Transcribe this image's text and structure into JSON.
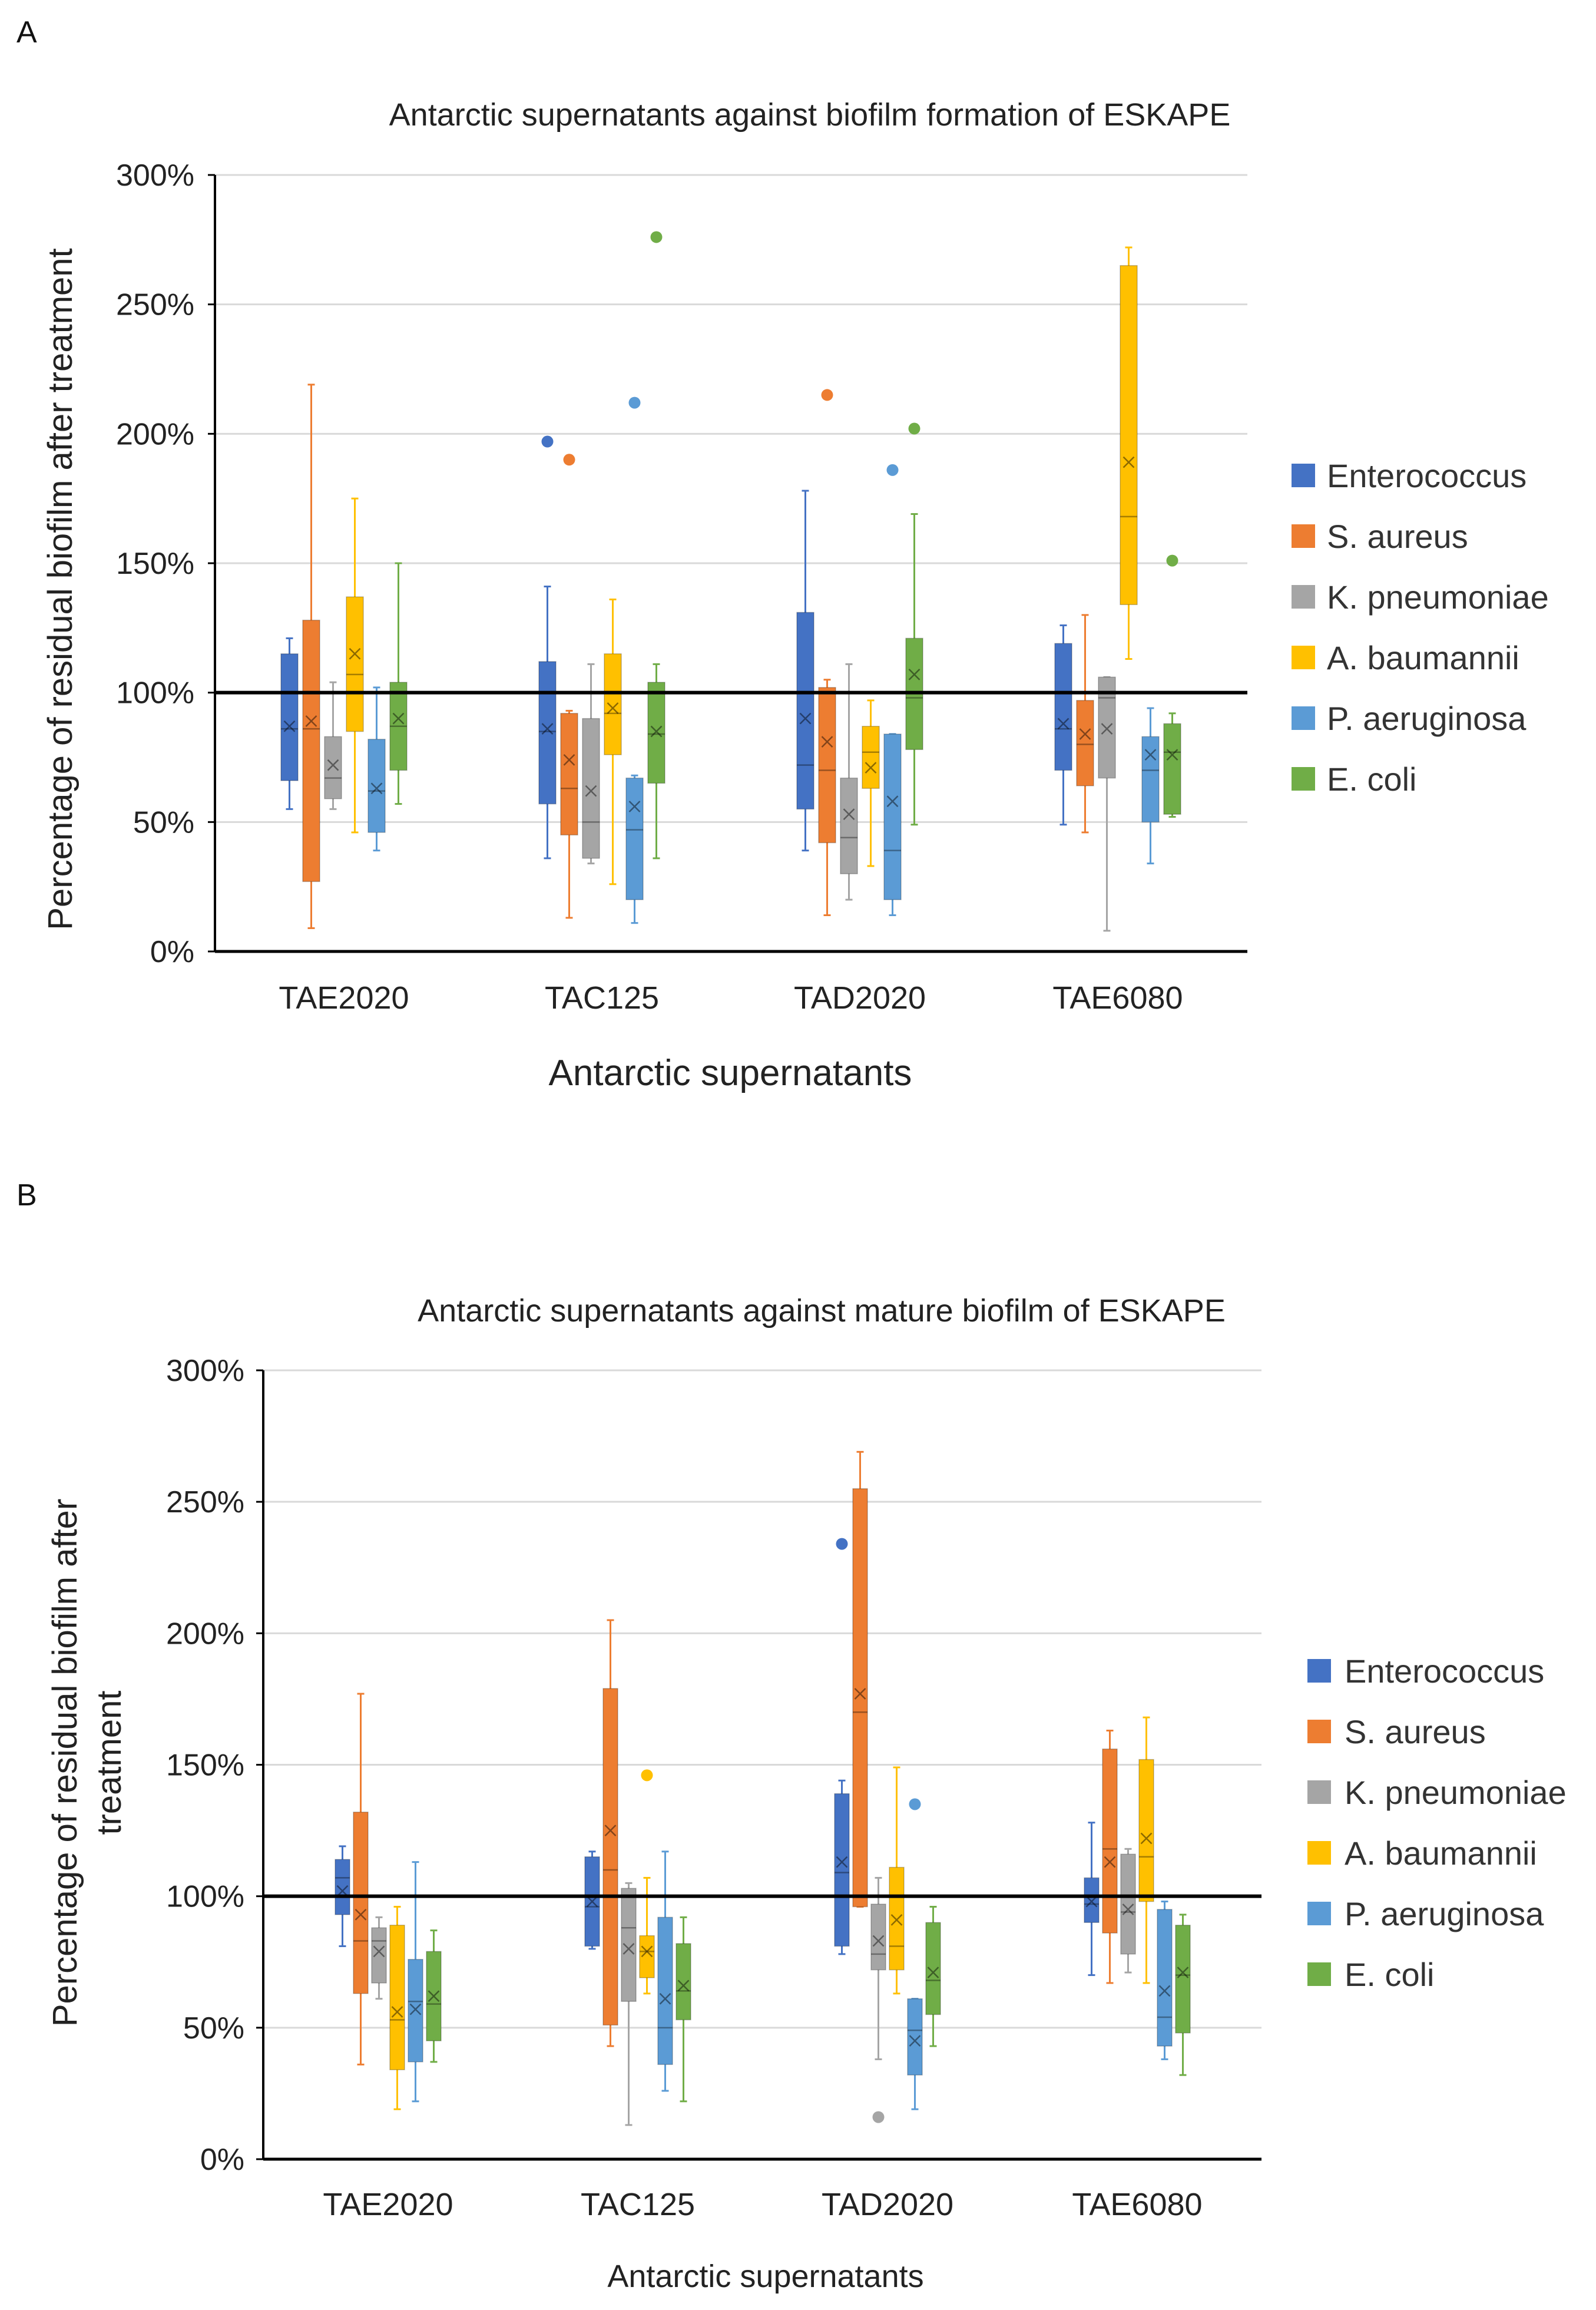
{
  "figure": {
    "panels": [
      "A",
      "B"
    ]
  },
  "colors": {
    "Enterococcus": "#4472C4",
    "S. aureus": "#ED7D31",
    "K. pneumoniae": "#A5A5A5",
    "A. baumannii": "#FFC000",
    "P. aeruginosa": "#5B9BD5",
    "E. coli": "#70AD47",
    "grid": "#d9d9d9",
    "axis": "#000000",
    "reference_line": "#000000"
  },
  "chart_data": [
    {
      "type": "box",
      "panel": "A",
      "title": "Antarctic supernatants against biofilm formation of ESKAPE",
      "xlabel": "Antarctic supernatants",
      "ylabel": "Percentage of residual biofilm after treatment",
      "ylim": [
        0,
        3.0
      ],
      "yticks": [
        "0%",
        "50%",
        "100%",
        "150%",
        "200%",
        "250%",
        "300%"
      ],
      "ytick_values": [
        0,
        0.5,
        1.0,
        1.5,
        2.0,
        2.5,
        3.0
      ],
      "reference_line": 1.0,
      "grid": true,
      "legend_position": "right",
      "categories": [
        "TAE2020",
        "TAC125",
        "TAD2020",
        "TAE6080"
      ],
      "series": [
        {
          "name": "Enterococcus",
          "boxes": [
            {
              "min": 0.55,
              "q1": 0.66,
              "median": 0.86,
              "q3": 1.15,
              "max": 1.21,
              "mean": 0.87,
              "outliers": []
            },
            {
              "min": 0.36,
              "q1": 0.57,
              "median": 0.85,
              "q3": 1.12,
              "max": 1.41,
              "mean": 0.86,
              "outliers": [
                1.97
              ]
            },
            {
              "min": 0.39,
              "q1": 0.55,
              "median": 0.72,
              "q3": 1.31,
              "max": 1.78,
              "mean": 0.9,
              "outliers": []
            },
            {
              "min": 0.49,
              "q1": 0.7,
              "median": 0.86,
              "q3": 1.19,
              "max": 1.26,
              "mean": 0.88,
              "outliers": []
            }
          ]
        },
        {
          "name": "S. aureus",
          "boxes": [
            {
              "min": 0.09,
              "q1": 0.27,
              "median": 0.86,
              "q3": 1.28,
              "max": 2.19,
              "mean": 0.89,
              "outliers": []
            },
            {
              "min": 0.13,
              "q1": 0.45,
              "median": 0.63,
              "q3": 0.92,
              "max": 0.93,
              "mean": 0.74,
              "outliers": [
                1.9
              ]
            },
            {
              "min": 0.14,
              "q1": 0.42,
              "median": 0.7,
              "q3": 1.02,
              "max": 1.05,
              "mean": 0.81,
              "outliers": [
                2.15
              ]
            },
            {
              "min": 0.46,
              "q1": 0.64,
              "median": 0.8,
              "q3": 0.97,
              "max": 1.3,
              "mean": 0.84,
              "outliers": []
            }
          ]
        },
        {
          "name": "K. pneumoniae",
          "boxes": [
            {
              "min": 0.55,
              "q1": 0.59,
              "median": 0.67,
              "q3": 0.83,
              "max": 1.04,
              "mean": 0.72,
              "outliers": []
            },
            {
              "min": 0.34,
              "q1": 0.36,
              "median": 0.5,
              "q3": 0.9,
              "max": 1.11,
              "mean": 0.62,
              "outliers": []
            },
            {
              "min": 0.2,
              "q1": 0.3,
              "median": 0.44,
              "q3": 0.67,
              "max": 1.11,
              "mean": 0.53,
              "outliers": []
            },
            {
              "min": 0.08,
              "q1": 0.67,
              "median": 0.98,
              "q3": 1.06,
              "max": 1.06,
              "mean": 0.86,
              "outliers": []
            }
          ]
        },
        {
          "name": "A. baumannii",
          "boxes": [
            {
              "min": 0.46,
              "q1": 0.85,
              "median": 1.07,
              "q3": 1.37,
              "max": 1.75,
              "mean": 1.15,
              "outliers": []
            },
            {
              "min": 0.26,
              "q1": 0.76,
              "median": 0.92,
              "q3": 1.15,
              "max": 1.36,
              "mean": 0.94,
              "outliers": []
            },
            {
              "min": 0.33,
              "q1": 0.63,
              "median": 0.77,
              "q3": 0.87,
              "max": 0.97,
              "mean": 0.71,
              "outliers": []
            },
            {
              "min": 1.13,
              "q1": 1.34,
              "median": 1.68,
              "q3": 2.65,
              "max": 2.72,
              "mean": 1.89,
              "outliers": []
            }
          ]
        },
        {
          "name": "P. aeruginosa",
          "boxes": [
            {
              "min": 0.39,
              "q1": 0.46,
              "median": 0.62,
              "q3": 0.82,
              "max": 1.02,
              "mean": 0.63,
              "outliers": []
            },
            {
              "min": 0.11,
              "q1": 0.2,
              "median": 0.47,
              "q3": 0.67,
              "max": 0.68,
              "mean": 0.56,
              "outliers": [
                2.12
              ]
            },
            {
              "min": 0.14,
              "q1": 0.2,
              "median": 0.39,
              "q3": 0.84,
              "max": 0.84,
              "mean": 0.58,
              "outliers": [
                1.86
              ]
            },
            {
              "min": 0.34,
              "q1": 0.5,
              "median": 0.7,
              "q3": 0.83,
              "max": 0.94,
              "mean": 0.76,
              "outliers": []
            }
          ]
        },
        {
          "name": "E. coli",
          "boxes": [
            {
              "min": 0.57,
              "q1": 0.7,
              "median": 0.87,
              "q3": 1.04,
              "max": 1.5,
              "mean": 0.9,
              "outliers": []
            },
            {
              "min": 0.36,
              "q1": 0.65,
              "median": 0.84,
              "q3": 1.04,
              "max": 1.11,
              "mean": 0.85,
              "outliers": [
                2.76
              ]
            },
            {
              "min": 0.49,
              "q1": 0.78,
              "median": 0.98,
              "q3": 1.21,
              "max": 1.69,
              "mean": 1.07,
              "outliers": [
                2.02
              ]
            },
            {
              "min": 0.52,
              "q1": 0.53,
              "median": 0.77,
              "q3": 0.88,
              "max": 0.92,
              "mean": 0.76,
              "outliers": [
                1.51
              ]
            }
          ]
        }
      ]
    },
    {
      "type": "box",
      "panel": "B",
      "title": "Antarctic supernatants against mature biofilm of ESKAPE",
      "xlabel": "Antarctic supernatants",
      "ylabel_lines": [
        "Percentage of residual biofilm after",
        "treatment"
      ],
      "ylim": [
        0,
        3.0
      ],
      "yticks": [
        "0%",
        "50%",
        "100%",
        "150%",
        "200%",
        "250%",
        "300%"
      ],
      "ytick_values": [
        0,
        0.5,
        1.0,
        1.5,
        2.0,
        2.5,
        3.0
      ],
      "reference_line": 1.0,
      "grid": true,
      "legend_position": "right",
      "categories": [
        "TAE2020",
        "TAC125",
        "TAD2020",
        "TAE6080"
      ],
      "series": [
        {
          "name": "Enterococcus",
          "boxes": [
            {
              "min": 0.81,
              "q1": 0.93,
              "median": 1.07,
              "q3": 1.14,
              "max": 1.19,
              "mean": 1.02,
              "outliers": []
            },
            {
              "min": 0.8,
              "q1": 0.81,
              "median": 0.96,
              "q3": 1.15,
              "max": 1.17,
              "mean": 0.98,
              "outliers": []
            },
            {
              "min": 0.78,
              "q1": 0.81,
              "median": 1.09,
              "q3": 1.39,
              "max": 1.44,
              "mean": 1.13,
              "outliers": [
                2.34
              ]
            },
            {
              "min": 0.7,
              "q1": 0.9,
              "median": 0.97,
              "q3": 1.07,
              "max": 1.28,
              "mean": 0.98,
              "outliers": []
            }
          ]
        },
        {
          "name": "S. aureus",
          "boxes": [
            {
              "min": 0.36,
              "q1": 0.63,
              "median": 0.83,
              "q3": 1.32,
              "max": 1.77,
              "mean": 0.93,
              "outliers": []
            },
            {
              "min": 0.43,
              "q1": 0.51,
              "median": 1.1,
              "q3": 1.79,
              "max": 2.05,
              "mean": 1.25,
              "outliers": []
            },
            {
              "min": 0.96,
              "q1": 0.96,
              "median": 1.7,
              "q3": 2.55,
              "max": 2.69,
              "mean": 1.77,
              "outliers": []
            },
            {
              "min": 0.67,
              "q1": 0.86,
              "median": 1.18,
              "q3": 1.56,
              "max": 1.63,
              "mean": 1.13,
              "outliers": []
            }
          ]
        },
        {
          "name": "K. pneumoniae",
          "boxes": [
            {
              "min": 0.61,
              "q1": 0.67,
              "median": 0.83,
              "q3": 0.88,
              "max": 0.92,
              "mean": 0.79,
              "outliers": []
            },
            {
              "min": 0.13,
              "q1": 0.6,
              "median": 0.88,
              "q3": 1.03,
              "max": 1.05,
              "mean": 0.8,
              "outliers": []
            },
            {
              "min": 0.38,
              "q1": 0.72,
              "median": 0.78,
              "q3": 0.97,
              "max": 1.07,
              "mean": 0.83,
              "outliers": [
                0.16
              ]
            },
            {
              "min": 0.71,
              "q1": 0.78,
              "median": 0.94,
              "q3": 1.16,
              "max": 1.18,
              "mean": 0.95,
              "outliers": []
            }
          ]
        },
        {
          "name": "A. baumannii",
          "boxes": [
            {
              "min": 0.19,
              "q1": 0.34,
              "median": 0.53,
              "q3": 0.89,
              "max": 0.96,
              "mean": 0.56,
              "outliers": []
            },
            {
              "min": 0.63,
              "q1": 0.69,
              "median": 0.79,
              "q3": 0.85,
              "max": 1.07,
              "mean": 0.79,
              "outliers": [
                1.46
              ]
            },
            {
              "min": 0.63,
              "q1": 0.72,
              "median": 0.81,
              "q3": 1.11,
              "max": 1.49,
              "mean": 0.91,
              "outliers": []
            },
            {
              "min": 0.67,
              "q1": 0.98,
              "median": 1.15,
              "q3": 1.52,
              "max": 1.68,
              "mean": 1.22,
              "outliers": []
            }
          ]
        },
        {
          "name": "P. aeruginosa",
          "boxes": [
            {
              "min": 0.22,
              "q1": 0.37,
              "median": 0.6,
              "q3": 0.76,
              "max": 1.13,
              "mean": 0.57,
              "outliers": []
            },
            {
              "min": 0.26,
              "q1": 0.36,
              "median": 0.5,
              "q3": 0.92,
              "max": 1.17,
              "mean": 0.61,
              "outliers": []
            },
            {
              "min": 0.19,
              "q1": 0.32,
              "median": 0.49,
              "q3": 0.61,
              "max": 0.61,
              "mean": 0.45,
              "outliers": [
                1.35
              ]
            },
            {
              "min": 0.38,
              "q1": 0.43,
              "median": 0.54,
              "q3": 0.95,
              "max": 0.98,
              "mean": 0.64,
              "outliers": []
            }
          ]
        },
        {
          "name": "E. coli",
          "boxes": [
            {
              "min": 0.37,
              "q1": 0.45,
              "median": 0.59,
              "q3": 0.79,
              "max": 0.87,
              "mean": 0.62,
              "outliers": []
            },
            {
              "min": 0.22,
              "q1": 0.53,
              "median": 0.64,
              "q3": 0.82,
              "max": 0.92,
              "mean": 0.66,
              "outliers": []
            },
            {
              "min": 0.43,
              "q1": 0.55,
              "median": 0.68,
              "q3": 0.9,
              "max": 0.96,
              "mean": 0.71,
              "outliers": []
            },
            {
              "min": 0.32,
              "q1": 0.48,
              "median": 0.7,
              "q3": 0.89,
              "max": 0.93,
              "mean": 0.71,
              "outliers": []
            }
          ]
        }
      ]
    }
  ]
}
